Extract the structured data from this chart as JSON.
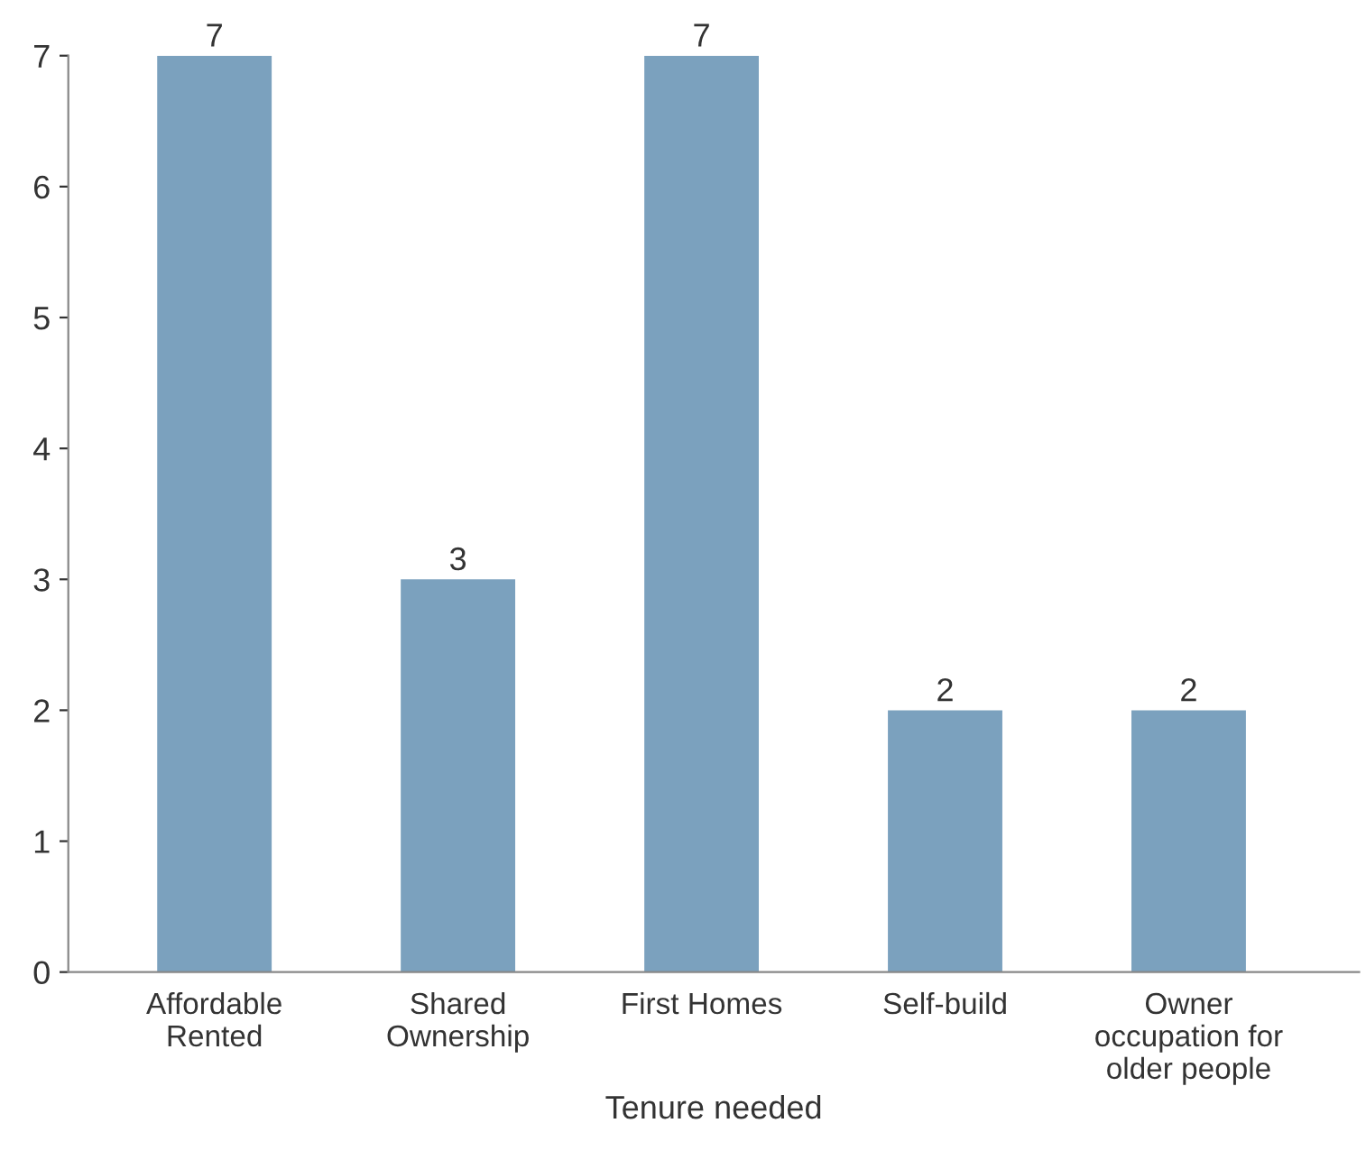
{
  "chart_data": {
    "type": "bar",
    "xlabel": "Tenure needed",
    "categories": [
      "Affordable\nRented",
      "Shared\nOwnership",
      "First Homes",
      "Self-build",
      "Owner\noccupation for\nolder people"
    ],
    "values": [
      7,
      3,
      7,
      2,
      2
    ],
    "color": "#7ba1be",
    "ylim": [
      0,
      7
    ],
    "yticks": [
      0,
      1,
      2,
      3,
      4,
      5,
      6,
      7
    ],
    "grid": false,
    "data_labels": true
  }
}
